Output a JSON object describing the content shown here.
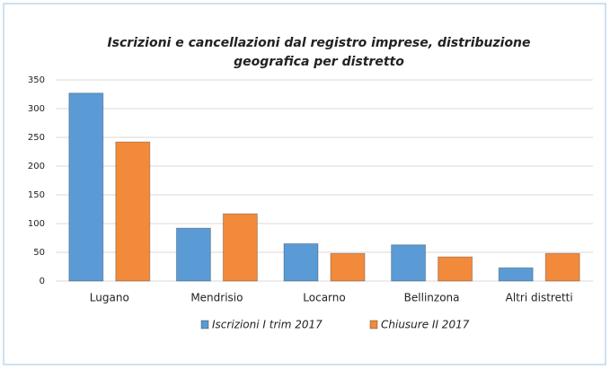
{
  "chart_data": {
    "type": "bar",
    "title": [
      "Iscrizioni e cancellazioni dal registro imprese, distribuzione",
      "geografica per distretto"
    ],
    "categories": [
      "Lugano",
      "Mendrisio",
      "Locarno",
      "Bellinzona",
      "Altri distretti"
    ],
    "series": [
      {
        "name": "Iscrizioni I trim 2017",
        "color": "#5b9bd5",
        "values": [
          327,
          92,
          65,
          63,
          23
        ]
      },
      {
        "name": "Chiusure II 2017",
        "color": "#f28a3b",
        "values": [
          242,
          117,
          48,
          42,
          48
        ]
      }
    ],
    "ylim": [
      0,
      350
    ],
    "yticks": [
      0,
      50,
      100,
      150,
      200,
      250,
      300,
      350
    ],
    "grid": true
  }
}
